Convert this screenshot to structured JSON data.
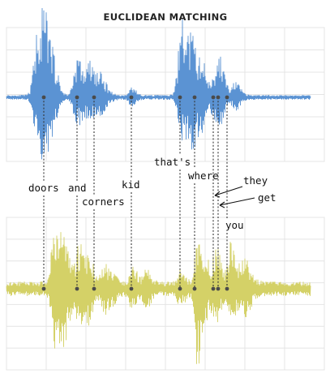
{
  "title": "EUCLIDEAN MATCHING",
  "colors": {
    "top_wave": "#5b93d3",
    "bottom_wave": "#d4d167",
    "grid": "#e4e4e4",
    "dots": "#4a4a4a",
    "text": "#111111"
  },
  "words": [
    {
      "id": "doors",
      "text": "doors"
    },
    {
      "id": "and",
      "text": "and"
    },
    {
      "id": "corners",
      "text": "corners"
    },
    {
      "id": "kid",
      "text": "kid"
    },
    {
      "id": "thats",
      "text": "that's"
    },
    {
      "id": "where",
      "text": "where"
    },
    {
      "id": "they",
      "text": "they"
    },
    {
      "id": "get",
      "text": "get"
    },
    {
      "id": "you",
      "text": "you"
    }
  ]
}
